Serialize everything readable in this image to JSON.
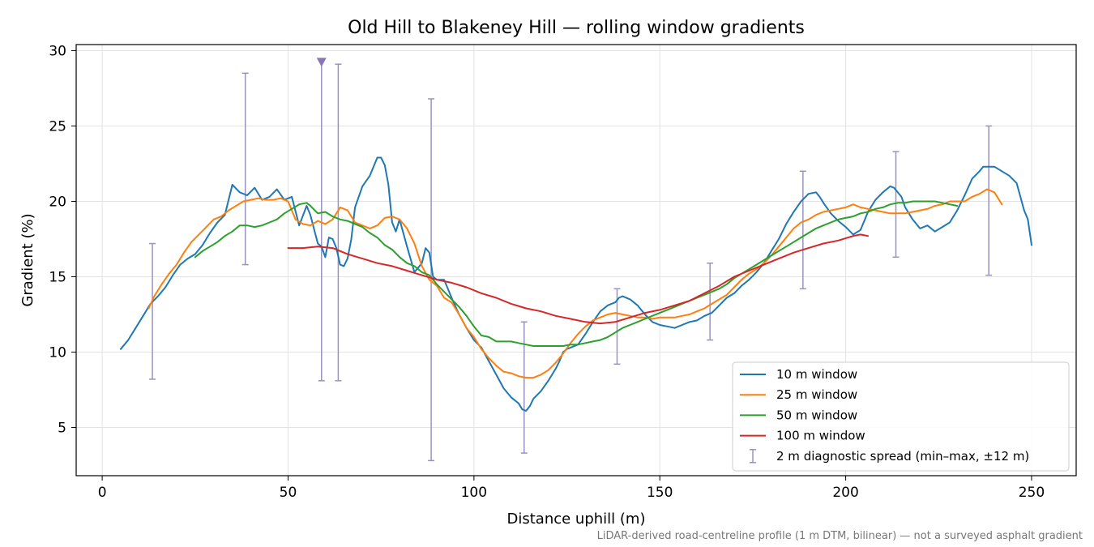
{
  "chart_data": {
    "type": "line",
    "title": "Old Hill to Blakeney Hill — rolling window gradients",
    "xlabel": "Distance uphill (m)",
    "ylabel": "Gradient (%)",
    "xlim": [
      -7,
      262
    ],
    "ylim": [
      1.8,
      30.4
    ],
    "x_ticks": [
      0,
      50,
      100,
      150,
      200,
      250
    ],
    "y_ticks": [
      5,
      10,
      15,
      20,
      25,
      30
    ],
    "grid": true,
    "legend_position": "lower-right",
    "footnote": "LiDAR-derived road-centreline profile (1 m DTM, bilinear) — not a surveyed asphalt gradient",
    "series": [
      {
        "name": "10 m window",
        "color": "#1f77b4",
        "x": [
          5,
          7,
          9,
          11,
          13,
          15,
          17,
          19,
          21,
          23,
          25,
          27,
          29,
          31,
          33,
          35,
          37,
          39,
          41,
          43,
          45,
          47,
          49,
          51,
          53,
          55,
          56,
          58,
          59,
          60,
          61,
          62,
          63,
          64,
          65,
          66,
          67,
          68,
          70,
          72,
          74,
          75,
          76,
          77,
          78,
          79,
          80,
          82,
          84,
          86,
          87,
          88,
          89,
          90,
          92,
          94,
          96,
          98,
          100,
          102,
          104,
          106,
          108,
          110,
          112,
          113,
          114,
          115,
          116,
          118,
          120,
          121,
          122,
          123,
          124,
          125,
          126,
          128,
          130,
          132,
          134,
          136,
          138,
          139,
          140,
          142,
          144,
          146,
          148,
          150,
          152,
          154,
          156,
          158,
          160,
          162,
          164,
          166,
          168,
          170,
          172,
          174,
          176,
          178,
          180,
          182,
          184,
          186,
          188,
          190,
          192,
          193,
          194,
          196,
          198,
          200,
          202,
          204,
          206,
          208,
          210,
          212,
          213,
          214,
          215,
          216,
          218,
          220,
          222,
          224,
          226,
          228,
          230,
          232,
          234,
          236,
          237,
          238,
          240,
          242,
          244,
          246,
          248,
          249,
          250
        ],
        "y": [
          10.2,
          10.8,
          11.6,
          12.4,
          13.2,
          13.7,
          14.3,
          15.1,
          15.8,
          16.2,
          16.5,
          17.1,
          17.9,
          18.6,
          19.1,
          21.1,
          20.6,
          20.4,
          20.9,
          20.1,
          20.3,
          20.8,
          20.1,
          20.3,
          18.4,
          19.7,
          19.1,
          17.2,
          17.0,
          16.3,
          17.6,
          17.5,
          16.9,
          15.8,
          15.7,
          16.2,
          17.5,
          19.6,
          21.0,
          21.7,
          22.9,
          22.9,
          22.4,
          21.1,
          18.6,
          18.0,
          18.8,
          17.0,
          15.3,
          15.9,
          16.9,
          16.6,
          15.0,
          14.8,
          14.8,
          13.6,
          12.5,
          11.6,
          10.8,
          10.3,
          9.4,
          8.5,
          7.6,
          7.0,
          6.6,
          6.2,
          6.1,
          6.4,
          6.9,
          7.4,
          8.1,
          8.5,
          8.9,
          9.4,
          10.0,
          10.2,
          10.3,
          10.5,
          11.2,
          12.0,
          12.7,
          13.1,
          13.3,
          13.6,
          13.7,
          13.5,
          13.1,
          12.5,
          12.0,
          11.8,
          11.7,
          11.6,
          11.8,
          12.0,
          12.1,
          12.4,
          12.6,
          13.1,
          13.6,
          13.9,
          14.4,
          14.8,
          15.3,
          15.9,
          16.7,
          17.5,
          18.5,
          19.3,
          20.0,
          20.5,
          20.6,
          20.3,
          19.9,
          19.2,
          18.7,
          18.3,
          17.8,
          18.1,
          19.3,
          20.1,
          20.6,
          21.0,
          20.9,
          20.6,
          20.3,
          19.6,
          18.8,
          18.2,
          18.4,
          18.0,
          18.3,
          18.6,
          19.4,
          20.4,
          21.5,
          22.0,
          22.3,
          22.3,
          22.3,
          22.0,
          21.7,
          21.2,
          19.4,
          18.8,
          17.1
        ]
      },
      {
        "name": "25 m window",
        "color": "#ff7f0e",
        "x": [
          12.5,
          14,
          16,
          18,
          20,
          22,
          24,
          26,
          28,
          30,
          32,
          34,
          36,
          38,
          40,
          42,
          44,
          46,
          48,
          50,
          52,
          54,
          56,
          58,
          60,
          62,
          64,
          66,
          68,
          70,
          72,
          74,
          76,
          78,
          80,
          82,
          84,
          86,
          88,
          90,
          92,
          94,
          96,
          98,
          100,
          102,
          104,
          106,
          108,
          110,
          112,
          114,
          116,
          118,
          120,
          122,
          124,
          126,
          128,
          130,
          132,
          134,
          136,
          138,
          140,
          142,
          144,
          146,
          148,
          150,
          152,
          154,
          156,
          158,
          160,
          162,
          164,
          166,
          168,
          170,
          172,
          174,
          176,
          178,
          180,
          182,
          184,
          186,
          188,
          190,
          192,
          194,
          196,
          198,
          200,
          202,
          204,
          206,
          208,
          210,
          212,
          214,
          216,
          218,
          220,
          222,
          224,
          226,
          228,
          230,
          232,
          234,
          236,
          238,
          240,
          242
        ],
        "y": [
          12.9,
          13.7,
          14.5,
          15.2,
          15.8,
          16.6,
          17.3,
          17.8,
          18.3,
          18.8,
          19.0,
          19.4,
          19.7,
          20.0,
          20.1,
          20.2,
          20.1,
          20.1,
          20.2,
          20.0,
          18.8,
          18.5,
          18.4,
          18.7,
          18.5,
          18.8,
          19.6,
          19.4,
          18.6,
          18.4,
          18.2,
          18.4,
          18.9,
          19.0,
          18.8,
          18.2,
          17.2,
          15.7,
          14.8,
          14.4,
          13.6,
          13.3,
          12.5,
          11.6,
          11.0,
          10.2,
          9.6,
          9.1,
          8.7,
          8.6,
          8.4,
          8.3,
          8.3,
          8.5,
          8.8,
          9.3,
          9.9,
          10.6,
          11.2,
          11.7,
          12.1,
          12.3,
          12.5,
          12.6,
          12.5,
          12.4,
          12.3,
          12.3,
          12.2,
          12.3,
          12.3,
          12.3,
          12.4,
          12.5,
          12.7,
          12.9,
          13.2,
          13.5,
          13.8,
          14.3,
          14.8,
          15.2,
          15.5,
          15.9,
          16.4,
          17.0,
          17.6,
          18.2,
          18.6,
          18.8,
          19.1,
          19.3,
          19.4,
          19.5,
          19.6,
          19.8,
          19.6,
          19.5,
          19.4,
          19.3,
          19.2,
          19.2,
          19.2,
          19.3,
          19.4,
          19.5,
          19.7,
          19.8,
          20.0,
          20.0,
          20.0,
          20.3,
          20.5,
          20.8,
          20.6,
          19.8
        ]
      },
      {
        "name": "50 m window",
        "color": "#2ca02c",
        "x": [
          25,
          27,
          29,
          31,
          33,
          35,
          37,
          39,
          41,
          43,
          45,
          47,
          49,
          51,
          53,
          55,
          56,
          58,
          60,
          62,
          64,
          66,
          68,
          70,
          72,
          74,
          76,
          78,
          80,
          82,
          84,
          86,
          88,
          90,
          92,
          94,
          96,
          98,
          100,
          102,
          104,
          106,
          108,
          110,
          112,
          114,
          116,
          118,
          120,
          122,
          124,
          126,
          128,
          130,
          132,
          134,
          136,
          138,
          140,
          142,
          144,
          146,
          148,
          150,
          152,
          154,
          156,
          158,
          160,
          162,
          164,
          166,
          168,
          170,
          172,
          174,
          176,
          178,
          180,
          182,
          184,
          186,
          188,
          190,
          192,
          194,
          196,
          198,
          200,
          202,
          204,
          206,
          208,
          210,
          212,
          214,
          216,
          218,
          220,
          222,
          224,
          226,
          228,
          230
        ],
        "y": [
          16.3,
          16.7,
          17.0,
          17.3,
          17.7,
          18.0,
          18.4,
          18.4,
          18.3,
          18.4,
          18.6,
          18.8,
          19.2,
          19.5,
          19.8,
          19.9,
          19.7,
          19.2,
          19.3,
          19.0,
          18.8,
          18.7,
          18.5,
          18.3,
          17.9,
          17.6,
          17.1,
          16.8,
          16.3,
          15.9,
          15.7,
          15.3,
          15.1,
          14.5,
          14.0,
          13.5,
          13.0,
          12.4,
          11.7,
          11.1,
          11.0,
          10.7,
          10.7,
          10.7,
          10.6,
          10.5,
          10.4,
          10.4,
          10.4,
          10.4,
          10.4,
          10.5,
          10.5,
          10.6,
          10.7,
          10.8,
          11.0,
          11.3,
          11.6,
          11.8,
          12.0,
          12.2,
          12.4,
          12.6,
          12.8,
          13.0,
          13.2,
          13.4,
          13.6,
          13.8,
          14.0,
          14.2,
          14.5,
          14.9,
          15.2,
          15.5,
          15.8,
          16.1,
          16.4,
          16.7,
          17.0,
          17.3,
          17.6,
          17.9,
          18.2,
          18.4,
          18.6,
          18.8,
          18.9,
          19.0,
          19.2,
          19.3,
          19.5,
          19.6,
          19.8,
          19.9,
          19.9,
          20.0,
          20.0,
          20.0,
          20.0,
          19.9,
          19.8,
          19.7
        ]
      },
      {
        "name": "100 m window",
        "color": "#d62728",
        "x": [
          50,
          54,
          58,
          62,
          66,
          70,
          74,
          78,
          82,
          86,
          90,
          94,
          98,
          102,
          106,
          110,
          114,
          118,
          122,
          126,
          130,
          134,
          138,
          142,
          146,
          150,
          154,
          158,
          162,
          166,
          170,
          174,
          178,
          182,
          186,
          190,
          194,
          198,
          202,
          204,
          206
        ],
        "y": [
          16.9,
          16.9,
          17.0,
          16.9,
          16.5,
          16.2,
          15.9,
          15.7,
          15.4,
          15.1,
          14.8,
          14.6,
          14.3,
          13.9,
          13.6,
          13.2,
          12.9,
          12.7,
          12.4,
          12.2,
          12.0,
          11.9,
          12.0,
          12.3,
          12.6,
          12.8,
          13.1,
          13.4,
          13.9,
          14.4,
          15.0,
          15.4,
          15.8,
          16.2,
          16.6,
          16.9,
          17.2,
          17.4,
          17.7,
          17.8,
          17.7
        ]
      }
    ],
    "diagnostic_spread": {
      "name": "2 m diagnostic spread (min–max, ±12 m)",
      "color": "#9a92c0",
      "points": [
        {
          "x": 13.5,
          "min": 8.2,
          "max": 17.2
        },
        {
          "x": 38.5,
          "min": 15.8,
          "max": 28.5
        },
        {
          "x": 59,
          "min": 8.1,
          "max": 29.2,
          "clipped_top": true
        },
        {
          "x": 63.5,
          "min": 8.1,
          "max": 29.1
        },
        {
          "x": 88.5,
          "min": 2.8,
          "max": 26.8
        },
        {
          "x": 113.5,
          "min": 3.3,
          "max": 12.0
        },
        {
          "x": 138.5,
          "min": 9.2,
          "max": 14.2
        },
        {
          "x": 163.5,
          "min": 10.8,
          "max": 15.9
        },
        {
          "x": 188.5,
          "min": 14.2,
          "max": 22.0
        },
        {
          "x": 213.5,
          "min": 16.3,
          "max": 23.3
        },
        {
          "x": 238.5,
          "min": 15.1,
          "max": 25.0
        }
      ]
    }
  }
}
